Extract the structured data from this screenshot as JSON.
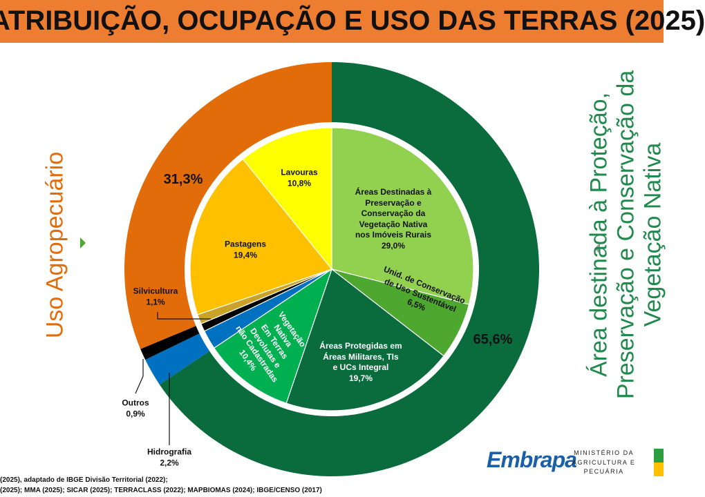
{
  "chart_data": {
    "type": "donut",
    "title": "ATRIBUIÇÃO, OCUPAÇÃO E USO DAS TERRAS (2025)",
    "rings": [
      {
        "categories": [
          "Área destinada à Proteção,\nPreservação e Conservação da\nVegetação Nativa",
          "Hidrografia",
          "Outros",
          "Uso Agropecuário"
        ],
        "values": [
          65.6,
          2.2,
          0.9,
          31.3
        ],
        "value_labels": [
          "65,6%",
          "2,2%",
          "0,9%",
          "31,3%"
        ],
        "colors": [
          "#0a6b3d",
          "#0070c0",
          "#000000",
          "#e36c0a"
        ]
      },
      {
        "categories": [
          "Áreas Destinadas à\nPreservação e\nConservação da\nVegetação Nativa\nnos Imóveis Rurais",
          "Unid. de Conservação\nde Uso Sustentável",
          "Áreas Protegidas em\nÁreas Militares, TIs\ne UCs Integral",
          "Vegetação\nNativa\nEm Terras\nDevolutas e\nnão Cadastradas",
          null,
          null,
          "Silvicultura",
          "Pastagens",
          "Lavouras"
        ],
        "values": [
          29.0,
          6.5,
          19.7,
          10.4,
          2.2,
          0.9,
          1.1,
          19.4,
          10.8
        ],
        "value_labels": [
          "29,0%",
          "6,5%",
          "19,7%",
          "10,4%",
          null,
          null,
          "1,1%",
          "19,4%",
          "10,8%"
        ],
        "colors": [
          "#92d050",
          "#4ea72e",
          "#0a6b3d",
          "#00b050",
          "#0070c0",
          "#000000",
          "#c9a227",
          "#ffc000",
          "#ffff00"
        ]
      }
    ]
  },
  "footer": {
    "sources": [
      "(2025), adaptado de IBGE Divisão Territorial (2022);",
      "(2025); MMA (2025); SICAR (2025); TERRACLASS (2022); MAPBIOMAS (2024); IBGE/CENSO (2017)"
    ]
  },
  "logos": {
    "embrapa": "Embrapa",
    "ministry": "MINISTÉRIO DA\nAGRICULTURA E\nPECUÁRIA"
  }
}
